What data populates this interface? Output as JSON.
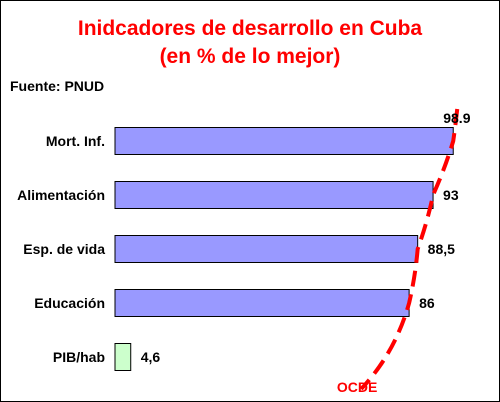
{
  "header": {
    "title_line1": "Inidcadores de desarrollo en Cuba",
    "title_line2": "(en % de lo mejor)",
    "source": "Fuente: PNUD"
  },
  "colors": {
    "title": "#ff0000",
    "bar_main": "#9999ff",
    "bar_low": "#ccffcc",
    "reference_line": "#ff0000"
  },
  "chart_data": {
    "type": "bar",
    "orientation": "horizontal",
    "categories": [
      "Mort. Inf.",
      "Alimentación",
      "Esp. de vida",
      "Educación",
      "PIB/hab"
    ],
    "values": [
      98.9,
      93,
      88.5,
      86,
      4.6
    ],
    "value_labels": [
      "98.9",
      "93",
      "88,5",
      "86",
      "4,6"
    ],
    "xlim": [
      0,
      100
    ],
    "grid": false,
    "reference_line": {
      "label": "OCDE",
      "style": "dashed"
    }
  }
}
